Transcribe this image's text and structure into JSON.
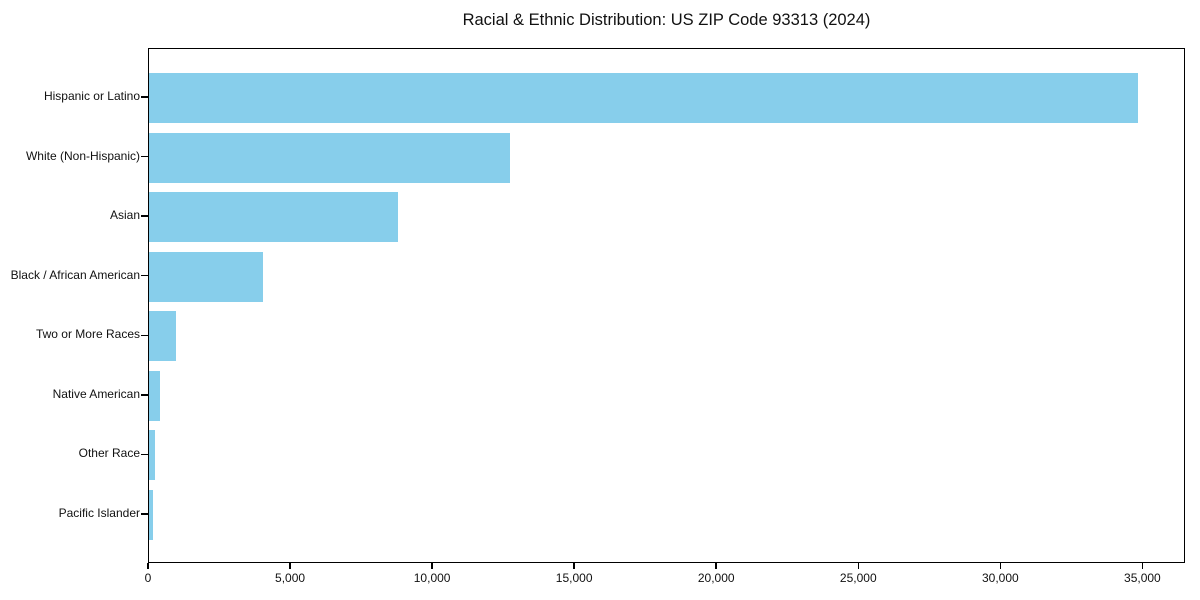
{
  "page": {
    "background": "#ffffff",
    "text_color": "#111111",
    "axis_color": "#000000"
  },
  "chart_data": {
    "type": "bar",
    "orientation": "horizontal",
    "title": "Racial & Ethnic Distribution: US ZIP Code 93313 (2024)",
    "categories": [
      "Hispanic or Latino",
      "White (Non-Hispanic)",
      "Asian",
      "Black / African American",
      "Two or More Races",
      "Native American",
      "Other Race",
      "Pacific Islander"
    ],
    "values": [
      34800,
      12700,
      8750,
      4000,
      950,
      380,
      200,
      130
    ],
    "xlabel": "",
    "ylabel": "",
    "xlim": [
      0,
      36500
    ],
    "xticks": [
      0,
      5000,
      10000,
      15000,
      20000,
      25000,
      30000,
      35000
    ],
    "xtick_labels": [
      "0",
      "5,000",
      "10,000",
      "15,000",
      "20,000",
      "25,000",
      "30,000",
      "35,000"
    ],
    "bar_color": "#87CEEB",
    "grid": false,
    "legend_position": "none"
  }
}
